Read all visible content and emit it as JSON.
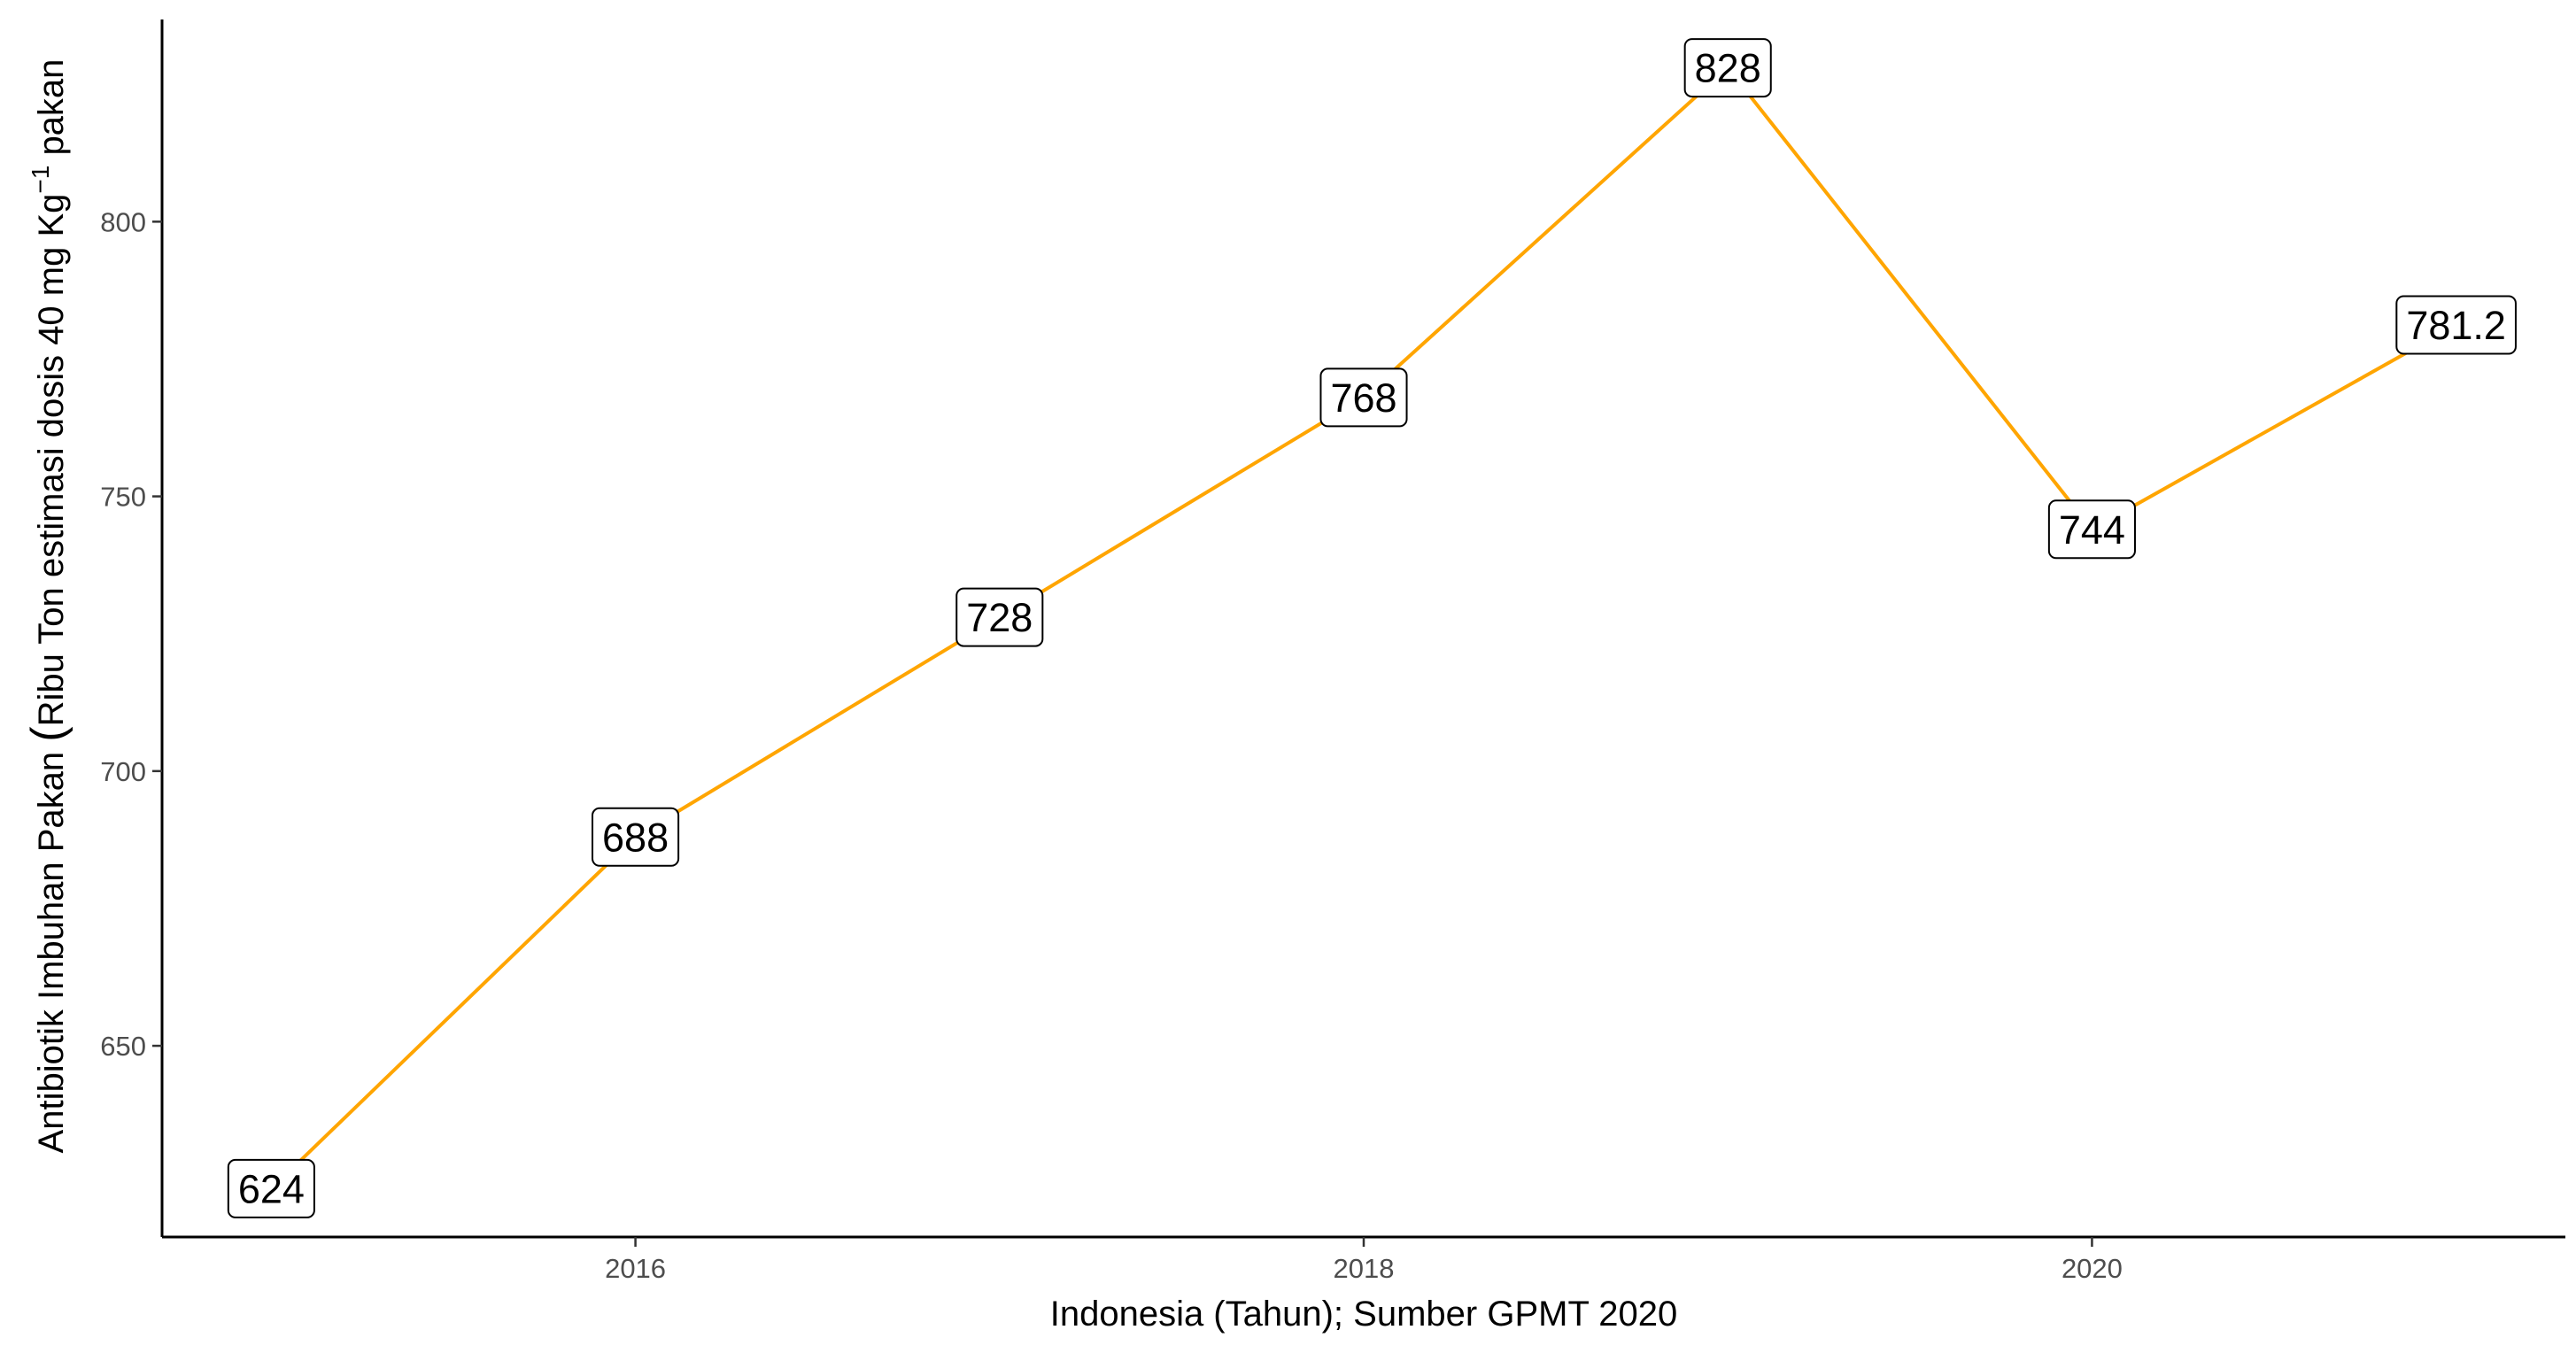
{
  "chart_data": {
    "type": "line",
    "title": "",
    "xlabel": "Indonesia (Tahun); Sumber GPMT 2020",
    "ylabel": {
      "prefix": "Antibiotik Imbuhan Pakan ",
      "paren": "(",
      "body": "Ribu Ton estimasi dosis 40 mg Kg",
      "superscript": "−1",
      "suffix": " pakan"
    },
    "x": [
      2015,
      2016,
      2017,
      2018,
      2019,
      2020,
      2021
    ],
    "series": [
      {
        "values": [
          624,
          688,
          728,
          768,
          828,
          744,
          781.2
        ],
        "labels": [
          "624",
          "688",
          "728",
          "768",
          "828",
          "744",
          "781.2"
        ],
        "color": "#FFA500"
      }
    ],
    "xticks": [
      2016,
      2018,
      2020
    ],
    "xtick_labels": [
      "2016",
      "2018",
      "2020"
    ],
    "yticks": [
      650,
      700,
      750,
      800
    ],
    "ytick_labels": [
      "650",
      "700",
      "750",
      "800"
    ],
    "xlim": [
      2014.7,
      2021.3
    ],
    "ylim": [
      615.2,
      836.8
    ],
    "grid": false,
    "legend": "none"
  }
}
